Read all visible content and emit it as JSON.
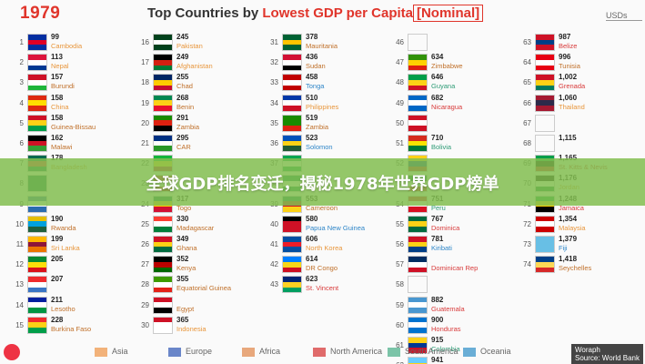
{
  "header": {
    "year": "1979",
    "title_prefix": "Top Countries by ",
    "title_red": "Lowest GDP per Capita",
    "title_box": "[Nominal]",
    "unit": "USDs"
  },
  "banner": {
    "text": "全球GDP排名变迁，揭秘1978年世界GDP榜单"
  },
  "legend": [
    {
      "label": "Asia",
      "color": "#f2b27a"
    },
    {
      "label": "Europe",
      "color": "#6a86c9"
    },
    {
      "label": "Africa",
      "color": "#e8a87c"
    },
    {
      "label": "North America",
      "color": "#e06b6b"
    },
    {
      "label": "South America",
      "color": "#7bc4a8"
    },
    {
      "label": "Oceania",
      "color": "#6aaed6"
    }
  ],
  "brand": {
    "line1": "Woraph",
    "line2": "Source: World Bank"
  },
  "region_colors": {
    "Asia": "#e8963c",
    "Europe": "#4a6fc0",
    "Africa": "#c0702a",
    "North America": "#d83a3a",
    "South America": "#2f9c77",
    "Oceania": "#2f86c8"
  },
  "chart_data": {
    "type": "table",
    "title": "Top Countries by Lowest GDP per Capita[Nominal]",
    "unit": "USDs",
    "rows": [
      {
        "rank": "1",
        "value": "99",
        "country": "Cambodia",
        "region": "Asia",
        "flag": [
          "#032ea1",
          "#e00025",
          "#032ea1"
        ]
      },
      {
        "rank": "2",
        "value": "113",
        "country": "Nepal",
        "region": "Asia",
        "flag": [
          "#dc143c",
          "#ffffff",
          "#003893"
        ]
      },
      {
        "rank": "3",
        "value": "157",
        "country": "Burundi",
        "region": "Africa",
        "flag": [
          "#ce1126",
          "#ffffff",
          "#1eb53a"
        ]
      },
      {
        "rank": "4",
        "value": "158",
        "country": "China",
        "region": "Asia",
        "flag": [
          "#de2910",
          "#ffde00",
          "#de2910"
        ]
      },
      {
        "rank": "5",
        "value": "158",
        "country": "Guinea-Bissau",
        "region": "Africa",
        "flag": [
          "#ce1126",
          "#fcd116",
          "#009e49"
        ]
      },
      {
        "rank": "6",
        "value": "162",
        "country": "Malawi",
        "region": "Africa",
        "flag": [
          "#000000",
          "#ce1126",
          "#339e35"
        ]
      },
      {
        "rank": "7",
        "value": "178",
        "country": "Bangladesh",
        "region": "Asia",
        "flag": [
          "#006a4e",
          "#f42a41",
          "#006a4e"
        ]
      },
      {
        "rank": "8",
        "value": "",
        "country": "",
        "region": "Asia",
        "flag": [
          "#006a4e",
          "#006a4e",
          "#006a4e"
        ]
      },
      {
        "rank": "9",
        "value": "",
        "country": "",
        "region": "Africa",
        "flag": [
          "#2b6cb0",
          "#ffffff",
          "#2b6cb0"
        ]
      },
      {
        "rank": "10",
        "value": "190",
        "country": "Rwanda",
        "region": "Africa",
        "flag": [
          "#e5be01",
          "#00a1de",
          "#20603d"
        ]
      },
      {
        "rank": "11",
        "value": "199",
        "country": "Sri Lanka",
        "region": "Asia",
        "flag": [
          "#ffb700",
          "#8d153a",
          "#eb7400"
        ]
      },
      {
        "rank": "12",
        "value": "205",
        "country": "",
        "region": "Africa",
        "flag": [
          "#078930",
          "#fcdd09",
          "#da121a"
        ]
      },
      {
        "rank": "13",
        "value": "207",
        "country": "",
        "region": "Africa",
        "flag": [
          "#ef2b2d",
          "#ffffff",
          "#3a75c4"
        ]
      },
      {
        "rank": "14",
        "value": "211",
        "country": "Lesotho",
        "region": "Africa",
        "flag": [
          "#00209f",
          "#ffffff",
          "#009543"
        ]
      },
      {
        "rank": "15",
        "value": "228",
        "country": "Burkina Faso",
        "region": "Africa",
        "flag": [
          "#ef2b2d",
          "#fcd116",
          "#009e49"
        ]
      },
      {
        "rank": "16",
        "value": "245",
        "country": "Pakistan",
        "region": "Asia",
        "flag": [
          "#01411c",
          "#ffffff",
          "#01411c"
        ]
      },
      {
        "rank": "17",
        "value": "249",
        "country": "Afghanistan",
        "region": "Asia",
        "flag": [
          "#000000",
          "#d32011",
          "#007a36"
        ]
      },
      {
        "rank": "18",
        "value": "255",
        "country": "Chad",
        "region": "Africa",
        "flag": [
          "#002664",
          "#fecb00",
          "#c60c30"
        ]
      },
      {
        "rank": "19",
        "value": "268",
        "country": "Benin",
        "region": "Africa",
        "flag": [
          "#008751",
          "#fcd116",
          "#e8112d"
        ]
      },
      {
        "rank": "20",
        "value": "291",
        "country": "Zambia",
        "region": "Africa",
        "flag": [
          "#198a00",
          "#de2010",
          "#000000"
        ]
      },
      {
        "rank": "21",
        "value": "295",
        "country": "CAR",
        "region": "Africa",
        "flag": [
          "#003082",
          "#ffffff",
          "#289728"
        ]
      },
      {
        "rank": "22",
        "value": "",
        "country": "",
        "region": "Africa",
        "flag": [
          "#14b53a",
          "#fcd116",
          "#ce1126"
        ]
      },
      {
        "rank": "23",
        "value": "",
        "country": "",
        "region": "Africa",
        "flag": [
          "#ce1126",
          "#ffffff",
          "#ce1126"
        ]
      },
      {
        "rank": "24",
        "value": "317",
        "country": "Togo",
        "region": "Africa",
        "flag": [
          "#006a4e",
          "#ffce00",
          "#d21034"
        ]
      },
      {
        "rank": "25",
        "value": "330",
        "country": "Madagascar",
        "region": "Africa",
        "flag": [
          "#fc3d32",
          "#ffffff",
          "#007e3a"
        ]
      },
      {
        "rank": "26",
        "value": "349",
        "country": "Ghana",
        "region": "Africa",
        "flag": [
          "#ce1126",
          "#fcd116",
          "#006b3f"
        ]
      },
      {
        "rank": "27",
        "value": "352",
        "country": "Kenya",
        "region": "Africa",
        "flag": [
          "#000000",
          "#bb0000",
          "#006600"
        ]
      },
      {
        "rank": "28",
        "value": "355",
        "country": "Equatorial Guinea",
        "region": "Africa",
        "flag": [
          "#3e9a00",
          "#ffffff",
          "#e32118"
        ]
      },
      {
        "rank": "29",
        "value": "",
        "country": "Egypt",
        "region": "Africa",
        "flag": [
          "#ce1126",
          "#ffffff",
          "#000000"
        ]
      },
      {
        "rank": "30",
        "value": "365",
        "country": "Indonesia",
        "region": "Asia",
        "flag": [
          "#ce1126",
          "#ffffff",
          "#ffffff"
        ]
      },
      {
        "rank": "31",
        "value": "378",
        "country": "Mauritania",
        "region": "Africa",
        "flag": [
          "#006233",
          "#ffc400",
          "#006233"
        ]
      },
      {
        "rank": "32",
        "value": "436",
        "country": "Sudan",
        "region": "Africa",
        "flag": [
          "#d21034",
          "#ffffff",
          "#000000"
        ]
      },
      {
        "rank": "33",
        "value": "458",
        "country": "Tonga",
        "region": "Oceania",
        "flag": [
          "#c10000",
          "#ffffff",
          "#c10000"
        ]
      },
      {
        "rank": "34",
        "value": "510",
        "country": "Philippines",
        "region": "Asia",
        "flag": [
          "#0038a8",
          "#ffffff",
          "#ce1126"
        ]
      },
      {
        "rank": "35",
        "value": "519",
        "country": "Zambia",
        "region": "Africa",
        "flag": [
          "#198a00",
          "#198a00",
          "#de2010"
        ]
      },
      {
        "rank": "36",
        "value": "523",
        "country": "Solomon",
        "region": "Oceania",
        "flag": [
          "#0051ba",
          "#fcd116",
          "#215b33"
        ]
      },
      {
        "rank": "37",
        "value": "",
        "country": "",
        "region": "Africa",
        "flag": [
          "#00a550",
          "#ffffff",
          "#00a550"
        ]
      },
      {
        "rank": "38",
        "value": "",
        "country": "Nigeria",
        "region": "Africa",
        "flag": [
          "#008751",
          "#ffffff",
          "#008751"
        ]
      },
      {
        "rank": "39",
        "value": "553",
        "country": "Cameroon",
        "region": "Africa",
        "flag": [
          "#007a5e",
          "#ce1126",
          "#fcd116"
        ]
      },
      {
        "rank": "40",
        "value": "580",
        "country": "Papua New Guinea",
        "region": "Oceania",
        "flag": [
          "#000000",
          "#ce1126",
          "#ce1126"
        ]
      },
      {
        "rank": "41",
        "value": "606",
        "country": "North Korea",
        "region": "Asia",
        "flag": [
          "#024fa2",
          "#ed1c27",
          "#024fa2"
        ]
      },
      {
        "rank": "42",
        "value": "614",
        "country": "DR Congo",
        "region": "Africa",
        "flag": [
          "#007fff",
          "#f7d618",
          "#ce1021"
        ]
      },
      {
        "rank": "43",
        "value": "623",
        "country": "St. Vincent",
        "region": "North America",
        "flag": [
          "#002674",
          "#fcd022",
          "#009e60"
        ]
      },
      {
        "rank": "46",
        "value": "",
        "country": "",
        "region": "Asia",
        "flag": [
          "#fafafa",
          "#fafafa",
          "#fafafa"
        ]
      },
      {
        "rank": "47",
        "value": "634",
        "country": "Zimbabwe",
        "region": "Africa",
        "flag": [
          "#319208",
          "#ffd200",
          "#de2010"
        ]
      },
      {
        "rank": "48",
        "value": "646",
        "country": "Guyana",
        "region": "South America",
        "flag": [
          "#009e49",
          "#fcd116",
          "#ce1126"
        ]
      },
      {
        "rank": "49",
        "value": "682",
        "country": "Nicaragua",
        "region": "North America",
        "flag": [
          "#0067c6",
          "#ffffff",
          "#0067c6"
        ]
      },
      {
        "rank": "50",
        "value": "",
        "country": "",
        "region": "Asia",
        "flag": [
          "#ce1126",
          "#ffffff",
          "#ce1126"
        ]
      },
      {
        "rank": "51",
        "value": "710",
        "country": "Bolivia",
        "region": "South America",
        "flag": [
          "#d52b1e",
          "#f9e300",
          "#007934"
        ]
      },
      {
        "rank": "52",
        "value": "",
        "country": "",
        "region": "South America",
        "flag": [
          "#fcd116",
          "#003893",
          "#ce1126"
        ]
      },
      {
        "rank": "53",
        "value": "",
        "country": "",
        "region": "South America",
        "flag": [
          "#007a3d",
          "#ffffff",
          "#ce1126"
        ]
      },
      {
        "rank": "54",
        "value": "751",
        "country": "Peru",
        "region": "South America",
        "flag": [
          "#d91023",
          "#ffffff",
          "#d91023"
        ]
      },
      {
        "rank": "55",
        "value": "767",
        "country": "Dominica",
        "region": "North America",
        "flag": [
          "#006b3f",
          "#fcd116",
          "#006b3f"
        ]
      },
      {
        "rank": "56",
        "value": "781",
        "country": "Kiribati",
        "region": "Oceania",
        "flag": [
          "#ce1126",
          "#fcd116",
          "#003f87"
        ]
      },
      {
        "rank": "57",
        "value": "",
        "country": "Dominican Rep",
        "region": "North America",
        "flag": [
          "#002d62",
          "#ffffff",
          "#ce1126"
        ]
      },
      {
        "rank": "58",
        "value": "",
        "country": "",
        "region": "North America",
        "flag": [
          "#fafafa",
          "#fafafa",
          "#fafafa"
        ]
      },
      {
        "rank": "59",
        "value": "882",
        "country": "Guatemala",
        "region": "North America",
        "flag": [
          "#4997d0",
          "#ffffff",
          "#4997d0"
        ]
      },
      {
        "rank": "60",
        "value": "900",
        "country": "Honduras",
        "region": "North America",
        "flag": [
          "#0073cf",
          "#ffffff",
          "#0073cf"
        ]
      },
      {
        "rank": "61",
        "value": "915",
        "country": "Colombia",
        "region": "South America",
        "flag": [
          "#fcd116",
          "#003893",
          "#ce1126"
        ]
      },
      {
        "rank": "62",
        "value": "941",
        "country": "St. Lucia",
        "region": "North America",
        "flag": [
          "#66ccff",
          "#fcd116",
          "#66ccff"
        ]
      },
      {
        "rank": "63",
        "value": "987",
        "country": "Belize",
        "region": "North America",
        "flag": [
          "#ce1126",
          "#003f87",
          "#ce1126"
        ]
      },
      {
        "rank": "64",
        "value": "996",
        "country": "Tunisia",
        "region": "Africa",
        "flag": [
          "#e70013",
          "#ffffff",
          "#e70013"
        ]
      },
      {
        "rank": "65",
        "value": "1,002",
        "country": "Grenada",
        "region": "North America",
        "flag": [
          "#ce1126",
          "#fcd116",
          "#007a5e"
        ]
      },
      {
        "rank": "66",
        "value": "1,060",
        "country": "Thailand",
        "region": "Asia",
        "flag": [
          "#a51931",
          "#2d2a4a",
          "#a51931"
        ]
      },
      {
        "rank": "67",
        "value": "",
        "country": "",
        "region": "Asia",
        "flag": [
          "#fafafa",
          "#fafafa",
          "#fafafa"
        ]
      },
      {
        "rank": "68",
        "value": "1,115",
        "country": "",
        "region": "Asia",
        "flag": [
          "#fafafa",
          "#fafafa",
          "#fafafa"
        ]
      },
      {
        "rank": "69",
        "value": "1,165",
        "country": "St. Kitts & Nevis",
        "region": "North America",
        "flag": [
          "#009e49",
          "#000000",
          "#ce1126"
        ]
      },
      {
        "rank": "70",
        "value": "1,176",
        "country": "Jordan",
        "region": "Asia",
        "flag": [
          "#000000",
          "#ffffff",
          "#007a3d"
        ]
      },
      {
        "rank": "71",
        "value": "1,248",
        "country": "Jamaica",
        "region": "North America",
        "flag": [
          "#009b3a",
          "#fed100",
          "#000000"
        ]
      },
      {
        "rank": "72",
        "value": "1,354",
        "country": "Malaysia",
        "region": "Asia",
        "flag": [
          "#cc0001",
          "#ffffff",
          "#cc0001"
        ]
      },
      {
        "rank": "73",
        "value": "1,379",
        "country": "Fiji",
        "region": "Oceania",
        "flag": [
          "#68bfe5",
          "#68bfe5",
          "#68bfe5"
        ]
      },
      {
        "rank": "74",
        "value": "1,418",
        "country": "Seychelles",
        "region": "Africa",
        "flag": [
          "#003f87",
          "#fcd856",
          "#d62828"
        ]
      }
    ]
  }
}
